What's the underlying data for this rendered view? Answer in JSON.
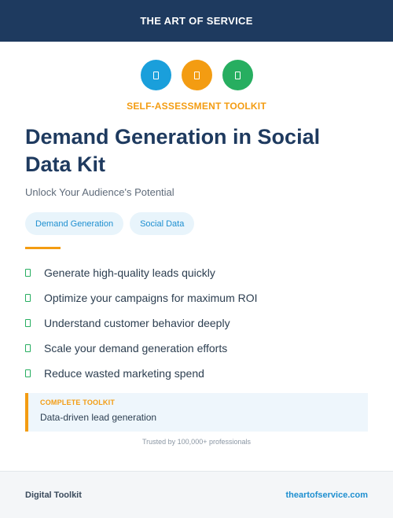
{
  "header": {
    "brand": "THE ART OF SERVICE"
  },
  "icons": [
    {
      "name": "document-icon",
      "color": "#1a9fdb"
    },
    {
      "name": "document-icon",
      "color": "#f39c12"
    },
    {
      "name": "document-icon",
      "color": "#27ae60"
    }
  ],
  "eyebrow": "SELF-ASSESSMENT TOOLKIT",
  "title": "Demand Generation in Social Data Kit",
  "subtitle": "Unlock Your Audience's Potential",
  "tags": [
    "Demand Generation",
    "Social Data"
  ],
  "features": [
    "Generate high-quality leads quickly",
    "Optimize your campaigns for maximum ROI",
    "Understand customer behavior deeply",
    "Scale your demand generation efforts",
    "Reduce wasted marketing spend"
  ],
  "callout": {
    "label": "COMPLETE TOOLKIT",
    "text": "Data-driven lead generation"
  },
  "trusted": "Trusted by 100,000+ professionals",
  "footer": {
    "left": "Digital Toolkit",
    "right": "theartofservice.com"
  },
  "colors": {
    "navy": "#1e3a5f",
    "accent_orange": "#f39c12",
    "accent_blue": "#1e8fd0",
    "check_green": "#27ae60"
  }
}
